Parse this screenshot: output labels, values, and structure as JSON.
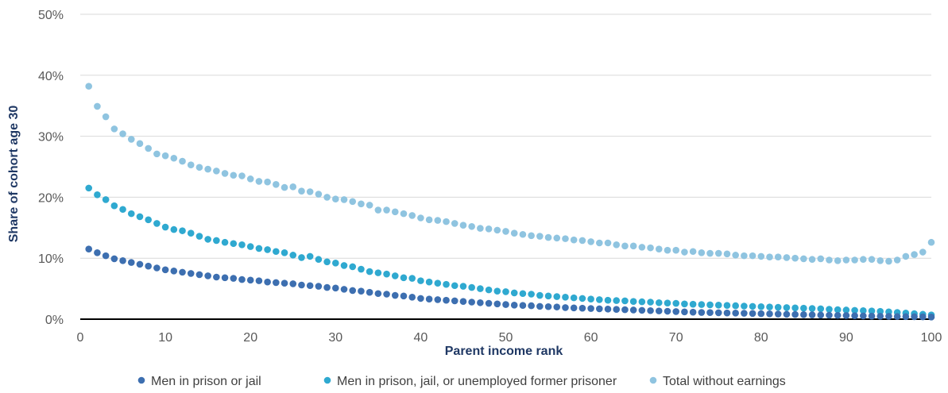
{
  "chart_data": {
    "type": "scatter",
    "xlabel": "Parent income rank",
    "ylabel": "Share of cohort age 30",
    "xlim": [
      0,
      100
    ],
    "ylim": [
      0,
      50
    ],
    "x_ticks": [
      "0",
      "10",
      "20",
      "30",
      "40",
      "50",
      "60",
      "70",
      "80",
      "90",
      "100"
    ],
    "y_ticks": [
      "0%",
      "10%",
      "20%",
      "30%",
      "40%",
      "50%"
    ],
    "grid": "horizontal",
    "legend_position": "bottom",
    "x": [
      1,
      2,
      3,
      4,
      5,
      6,
      7,
      8,
      9,
      10,
      11,
      12,
      13,
      14,
      15,
      16,
      17,
      18,
      19,
      20,
      21,
      22,
      23,
      24,
      25,
      26,
      27,
      28,
      29,
      30,
      31,
      32,
      33,
      34,
      35,
      36,
      37,
      38,
      39,
      40,
      41,
      42,
      43,
      44,
      45,
      46,
      47,
      48,
      49,
      50,
      51,
      52,
      53,
      54,
      55,
      56,
      57,
      58,
      59,
      60,
      61,
      62,
      63,
      64,
      65,
      66,
      67,
      68,
      69,
      70,
      71,
      72,
      73,
      74,
      75,
      76,
      77,
      78,
      79,
      80,
      81,
      82,
      83,
      84,
      85,
      86,
      87,
      88,
      89,
      90,
      91,
      92,
      93,
      94,
      95,
      96,
      97,
      98,
      99,
      100
    ],
    "series": [
      {
        "name": "Men in prison or jail",
        "color": "#3d6fb0",
        "values": [
          11.5,
          10.9,
          10.4,
          9.9,
          9.6,
          9.3,
          9.0,
          8.7,
          8.4,
          8.1,
          7.9,
          7.7,
          7.5,
          7.3,
          7.1,
          6.9,
          6.8,
          6.7,
          6.5,
          6.4,
          6.3,
          6.1,
          6.0,
          5.9,
          5.8,
          5.6,
          5.5,
          5.4,
          5.2,
          5.1,
          4.9,
          4.7,
          4.6,
          4.4,
          4.2,
          4.1,
          3.9,
          3.8,
          3.6,
          3.4,
          3.3,
          3.2,
          3.1,
          3.0,
          2.9,
          2.8,
          2.7,
          2.6,
          2.5,
          2.4,
          2.3,
          2.25,
          2.2,
          2.1,
          2.05,
          2.0,
          1.9,
          1.85,
          1.8,
          1.75,
          1.7,
          1.65,
          1.6,
          1.55,
          1.5,
          1.45,
          1.4,
          1.35,
          1.3,
          1.25,
          1.2,
          1.15,
          1.1,
          1.08,
          1.05,
          1.02,
          1.0,
          0.97,
          0.94,
          0.9,
          0.87,
          0.84,
          0.8,
          0.77,
          0.74,
          0.71,
          0.68,
          0.65,
          0.62,
          0.59,
          0.56,
          0.53,
          0.5,
          0.48,
          0.46,
          0.44,
          0.42,
          0.4,
          0.38,
          0.35
        ]
      },
      {
        "name": "Men in prison, jail, or unemployed former prisoner",
        "color": "#2fa9d0",
        "values": [
          21.5,
          20.4,
          19.6,
          18.6,
          18.0,
          17.3,
          16.8,
          16.3,
          15.7,
          15.1,
          14.7,
          14.5,
          14.1,
          13.6,
          13.1,
          12.9,
          12.6,
          12.4,
          12.2,
          11.9,
          11.6,
          11.4,
          11.1,
          10.9,
          10.5,
          10.1,
          10.3,
          9.8,
          9.4,
          9.2,
          8.8,
          8.6,
          8.2,
          7.8,
          7.6,
          7.4,
          7.1,
          6.8,
          6.7,
          6.3,
          6.1,
          5.9,
          5.7,
          5.5,
          5.4,
          5.2,
          5.0,
          4.8,
          4.6,
          4.5,
          4.3,
          4.2,
          4.1,
          3.9,
          3.8,
          3.7,
          3.6,
          3.5,
          3.4,
          3.3,
          3.2,
          3.1,
          3.05,
          3.0,
          2.9,
          2.85,
          2.8,
          2.7,
          2.65,
          2.6,
          2.5,
          2.45,
          2.4,
          2.35,
          2.3,
          2.25,
          2.2,
          2.15,
          2.1,
          2.05,
          2.0,
          1.95,
          1.9,
          1.85,
          1.8,
          1.75,
          1.7,
          1.62,
          1.55,
          1.5,
          1.45,
          1.4,
          1.35,
          1.28,
          1.2,
          1.1,
          1.0,
          0.9,
          0.8,
          0.7
        ]
      },
      {
        "name": "Total without earnings",
        "color": "#8fc4e0",
        "values": [
          38.2,
          34.9,
          33.2,
          31.2,
          30.4,
          29.5,
          28.8,
          28.0,
          27.1,
          26.8,
          26.4,
          25.9,
          25.3,
          24.9,
          24.6,
          24.3,
          23.9,
          23.6,
          23.5,
          23.0,
          22.6,
          22.5,
          22.1,
          21.6,
          21.7,
          21.0,
          20.9,
          20.5,
          20.0,
          19.7,
          19.6,
          19.3,
          18.9,
          18.7,
          17.9,
          17.9,
          17.6,
          17.3,
          17.0,
          16.6,
          16.3,
          16.2,
          16.0,
          15.7,
          15.4,
          15.2,
          14.9,
          14.8,
          14.6,
          14.4,
          14.1,
          13.9,
          13.7,
          13.6,
          13.4,
          13.3,
          13.2,
          13.0,
          12.9,
          12.7,
          12.5,
          12.5,
          12.2,
          12.0,
          12.0,
          11.8,
          11.7,
          11.5,
          11.3,
          11.3,
          11.0,
          11.1,
          10.9,
          10.8,
          10.8,
          10.7,
          10.5,
          10.4,
          10.4,
          10.3,
          10.2,
          10.2,
          10.1,
          10.0,
          9.9,
          9.8,
          9.9,
          9.7,
          9.6,
          9.7,
          9.7,
          9.8,
          9.8,
          9.6,
          9.5,
          9.7,
          10.3,
          10.6,
          11.0,
          12.6
        ]
      }
    ]
  }
}
